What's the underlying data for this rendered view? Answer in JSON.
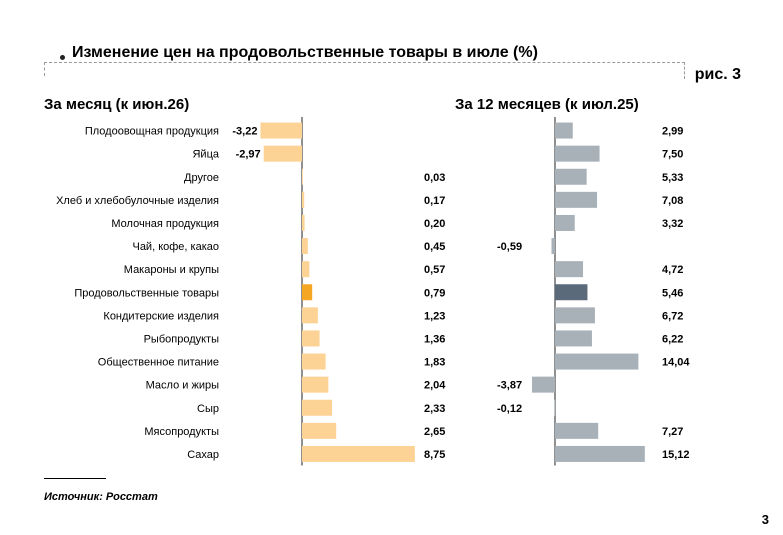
{
  "header": {
    "title": "Изменение цен на продовольственные товары в июле (%)",
    "figure_label": "рис. 3"
  },
  "footer": {
    "source": "Источник: Росстат",
    "page_number": "3"
  },
  "colors": {
    "month_bar": "#fdd295",
    "month_highlight": "#f5a623",
    "year_bar": "#a8b1b8",
    "year_highlight": "#5a6a7a",
    "axis": "#222222"
  },
  "chart_data": [
    {
      "type": "bar",
      "orientation": "horizontal",
      "title": "За месяц (к июн.26)",
      "categories": [
        "Плодоовощная продукция",
        "Яйца",
        "Другое",
        "Хлеб и хлебобулочные изделия",
        "Молочная продукция",
        "Чай, кофе, какао",
        "Макароны и крупы",
        "Продовольственные товары",
        "Кондитерские изделия",
        "Рыбопродукты",
        "Общественное питание",
        "Масло и жиры",
        "Сыр",
        "Мясопродукты",
        "Сахар"
      ],
      "values": [
        -3.22,
        -2.97,
        0.03,
        0.17,
        0.2,
        0.45,
        0.57,
        0.79,
        1.23,
        1.36,
        1.83,
        2.04,
        2.33,
        2.65,
        8.75
      ],
      "labels": [
        "-3,22",
        "-2,97",
        "0,03",
        "0,17",
        "0,20",
        "0,45",
        "0,57",
        "0,79",
        "1,23",
        "1,36",
        "1,83",
        "2,04",
        "2,33",
        "2,65",
        "8,75"
      ],
      "highlight_index": 7
    },
    {
      "type": "bar",
      "orientation": "horizontal",
      "title": "За 12 месяцев (к июл.25)",
      "categories": [
        "Плодоовощная продукция",
        "Яйца",
        "Другое",
        "Хлеб и хлебобулочные изделия",
        "Молочная продукция",
        "Чай, кофе, какао",
        "Макароны и крупы",
        "Продовольственные товары",
        "Кондитерские изделия",
        "Рыбопродукты",
        "Общественное питание",
        "Масло и жиры",
        "Сыр",
        "Мясопродукты",
        "Сахар"
      ],
      "values": [
        2.99,
        7.5,
        5.33,
        7.08,
        3.32,
        -0.59,
        4.72,
        5.46,
        6.72,
        6.22,
        14.04,
        -3.87,
        -0.12,
        7.27,
        15.12
      ],
      "labels": [
        "2,99",
        "7,50",
        "5,33",
        "7,08",
        "3,32",
        "-0,59",
        "4,72",
        "5,46",
        "6,72",
        "6,22",
        "14,04",
        "-3,87",
        "-0,12",
        "7,27",
        "15,12"
      ],
      "highlight_index": 7
    }
  ]
}
